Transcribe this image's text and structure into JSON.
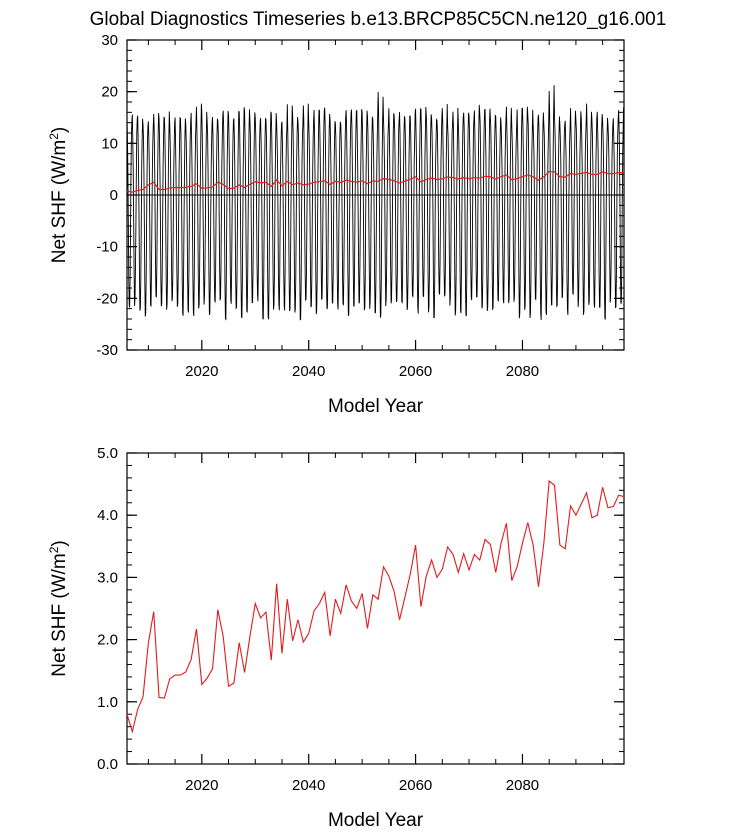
{
  "title": "Global Diagnostics Timeseries b.e13.BRCP85C5CN.ne120_g16.001",
  "colors": {
    "monthly_line": "#000000",
    "annual_line": "#e41a1c",
    "axis": "#000000"
  },
  "annual_years": [
    2006,
    2007,
    2008,
    2009,
    2010,
    2011,
    2012,
    2013,
    2014,
    2015,
    2016,
    2017,
    2018,
    2019,
    2020,
    2021,
    2022,
    2023,
    2024,
    2025,
    2026,
    2027,
    2028,
    2029,
    2030,
    2031,
    2032,
    2033,
    2034,
    2035,
    2036,
    2037,
    2038,
    2039,
    2040,
    2041,
    2042,
    2043,
    2044,
    2045,
    2046,
    2047,
    2048,
    2049,
    2050,
    2051,
    2052,
    2053,
    2054,
    2055,
    2056,
    2057,
    2058,
    2059,
    2060,
    2061,
    2062,
    2063,
    2064,
    2065,
    2066,
    2067,
    2068,
    2069,
    2070,
    2071,
    2072,
    2073,
    2074,
    2075,
    2076,
    2077,
    2078,
    2079,
    2080,
    2081,
    2082,
    2083,
    2084,
    2085,
    2086,
    2087,
    2088,
    2089,
    2090,
    2091,
    2092,
    2093,
    2094,
    2095,
    2096,
    2097,
    2098,
    2099
  ],
  "annual_values": [
    0.8,
    0.52,
    0.88,
    1.08,
    1.95,
    2.45,
    1.07,
    1.06,
    1.37,
    1.43,
    1.43,
    1.48,
    1.68,
    2.17,
    1.28,
    1.38,
    1.53,
    2.48,
    2.05,
    1.25,
    1.3,
    1.95,
    1.47,
    2.05,
    2.58,
    2.35,
    2.44,
    1.67,
    2.9,
    1.78,
    2.65,
    1.98,
    2.32,
    1.96,
    2.1,
    2.46,
    2.58,
    2.76,
    2.06,
    2.65,
    2.42,
    2.88,
    2.62,
    2.5,
    2.74,
    2.18,
    2.72,
    2.65,
    3.17,
    3.02,
    2.77,
    2.32,
    2.68,
    3.05,
    3.52,
    2.53,
    3.02,
    3.28,
    3.0,
    3.13,
    3.49,
    3.37,
    3.08,
    3.38,
    3.12,
    3.37,
    3.28,
    3.61,
    3.53,
    3.08,
    3.55,
    3.87,
    2.95,
    3.17,
    3.55,
    3.88,
    3.52,
    2.85,
    3.55,
    4.55,
    4.48,
    3.52,
    3.46,
    4.15,
    4.0,
    4.18,
    4.36,
    3.96,
    4.0,
    4.45,
    4.12,
    4.14,
    4.32,
    4.3
  ],
  "chart_data": [
    {
      "type": "line",
      "title": "Global Diagnostics Timeseries b.e13.BRCP85C5CN.ne120_g16.001",
      "xlabel": "Model Year",
      "ylabel": "Net SHF (W/m",
      "ylabel_sup": "2",
      "ylabel_close": ")",
      "xlim": [
        2006,
        2099
      ],
      "ylim": [
        -30,
        30
      ],
      "xticks": [
        2020,
        2040,
        2060,
        2080
      ],
      "xtick_labels": [
        "2020",
        "2040",
        "2060",
        "2080"
      ],
      "yticks": [
        -30,
        -20,
        -10,
        0,
        10,
        20,
        30
      ],
      "ytick_labels": [
        "-30",
        "-20",
        "-10",
        "0",
        "10",
        "20",
        "30"
      ],
      "reference_line": 0,
      "series": [
        {
          "name": "monthly",
          "color": "#000000",
          "description": "monthly oscillation approx. -24 to +16, peaks up to ~22 near 2085"
        },
        {
          "name": "annual mean",
          "color": "#e41a1c",
          "source": "annual_values"
        }
      ]
    },
    {
      "type": "line",
      "xlabel": "Model Year",
      "ylabel": "Net SHF (W/m",
      "ylabel_sup": "2",
      "ylabel_close": ")",
      "xlim": [
        2006,
        2099
      ],
      "ylim": [
        0.0,
        5.0
      ],
      "xticks": [
        2020,
        2040,
        2060,
        2080
      ],
      "xtick_labels": [
        "2020",
        "2040",
        "2060",
        "2080"
      ],
      "yticks": [
        0,
        1,
        2,
        3,
        4,
        5
      ],
      "ytick_labels": [
        "0.0",
        "1.0",
        "2.0",
        "3.0",
        "4.0",
        "5.0"
      ],
      "series": [
        {
          "name": "annual mean",
          "color": "#e41a1c",
          "source": "annual_values"
        }
      ]
    }
  ]
}
